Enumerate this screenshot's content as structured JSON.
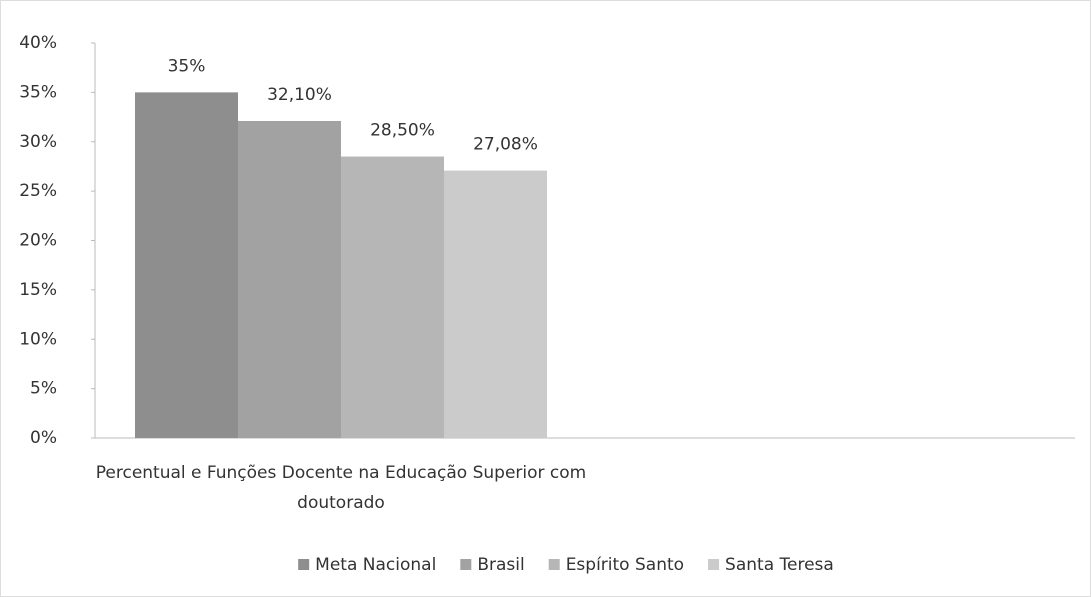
{
  "chart_data": {
    "type": "bar",
    "categories": [
      "Percentual e Funções Docente na Educação Superior com  doutorado"
    ],
    "series": [
      {
        "name": "Meta Nacional",
        "color": "#8e8e8e",
        "values": [
          35
        ],
        "value_labels": [
          "35%"
        ]
      },
      {
        "name": "Brasil",
        "color": "#a2a2a2",
        "values": [
          32.1
        ],
        "value_labels": [
          "32,10%"
        ]
      },
      {
        "name": "Espírito Santo",
        "color": "#b6b6b6",
        "values": [
          28.5
        ],
        "value_labels": [
          "28,50%"
        ]
      },
      {
        "name": "Santa Teresa",
        "color": "#cbcbcb",
        "values": [
          27.08
        ],
        "value_labels": [
          "27,08%"
        ]
      }
    ],
    "ylim": [
      0,
      40
    ],
    "yticks": [
      {
        "value": 0,
        "label": "0%"
      },
      {
        "value": 5,
        "label": "5%"
      },
      {
        "value": 10,
        "label": "10%"
      },
      {
        "value": 15,
        "label": "15%"
      },
      {
        "value": 20,
        "label": "20%"
      },
      {
        "value": 25,
        "label": "25%"
      },
      {
        "value": 30,
        "label": "30%"
      },
      {
        "value": 35,
        "label": "35%"
      },
      {
        "value": 40,
        "label": "40%"
      }
    ],
    "grid": false,
    "legend": "bottom"
  }
}
